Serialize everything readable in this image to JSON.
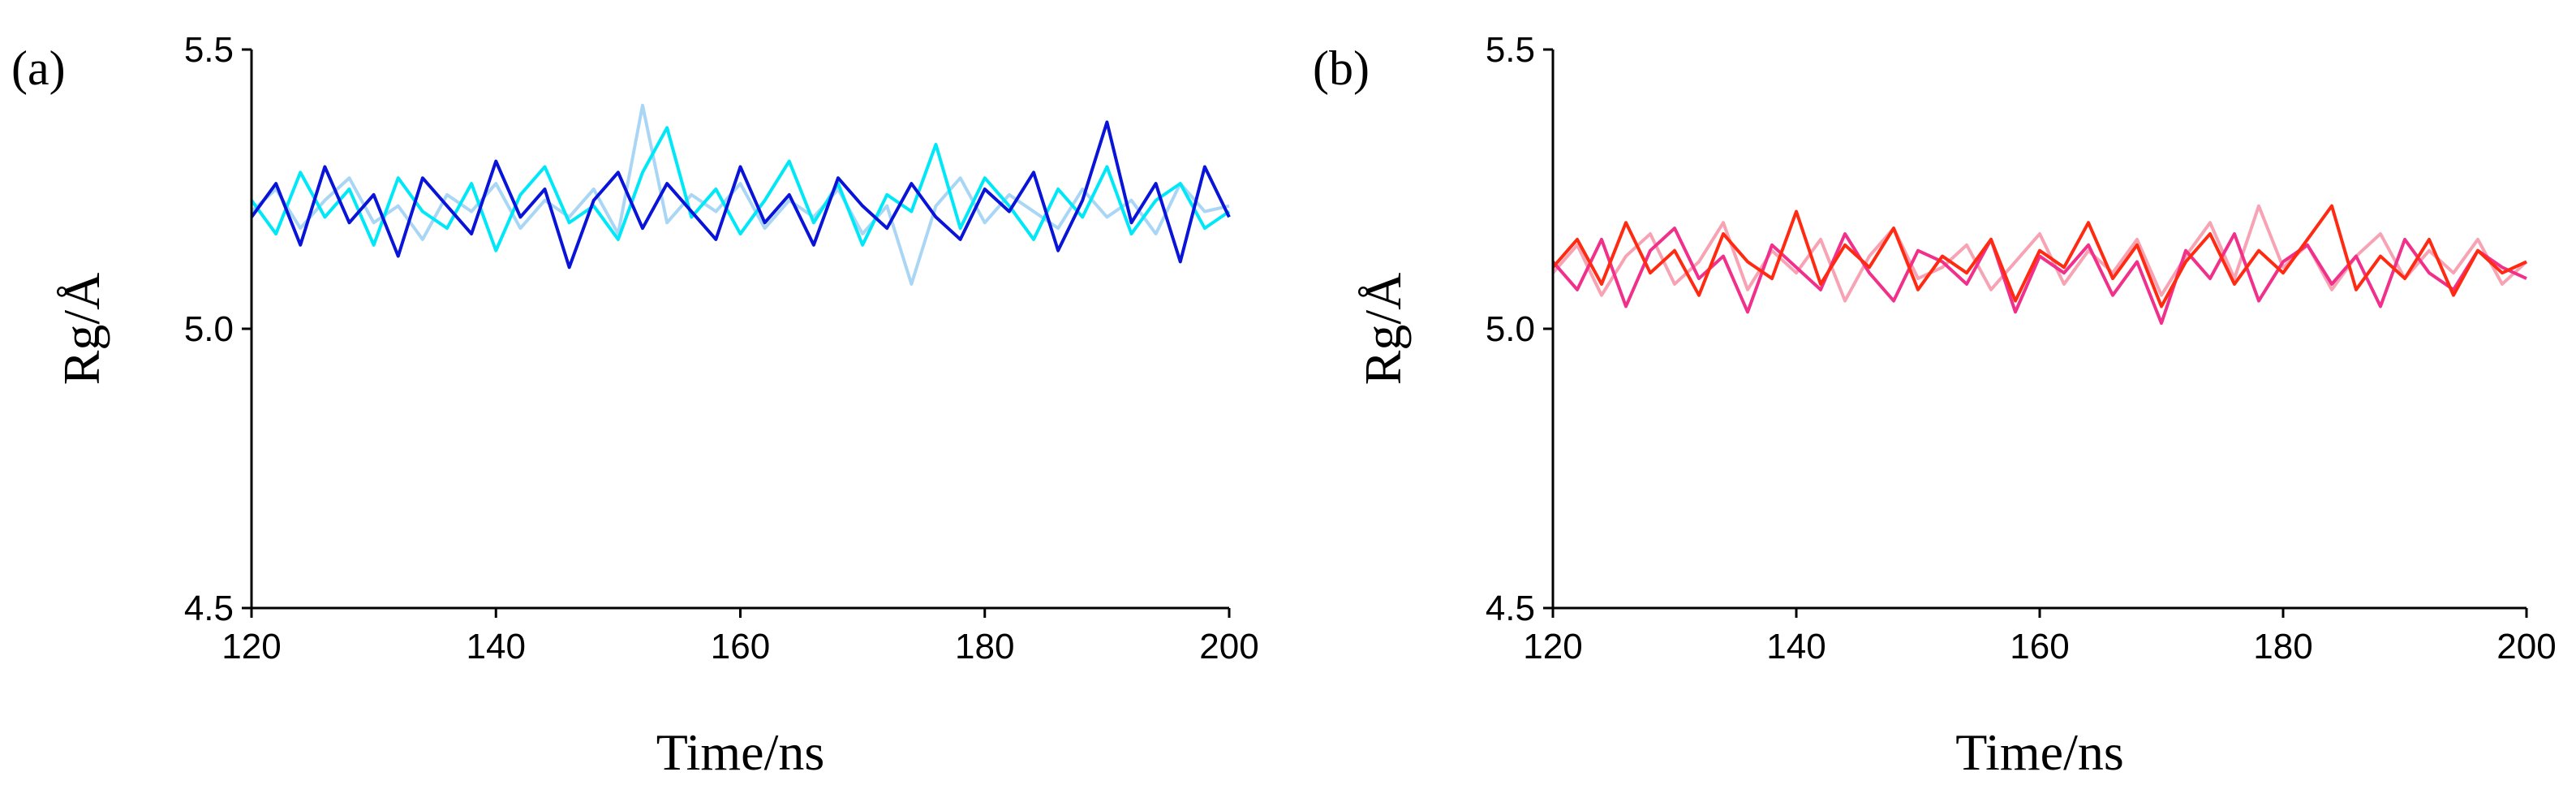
{
  "chart_data": [
    {
      "type": "line",
      "label": "(a)",
      "xlabel": "Time/ns",
      "ylabel": "Rg/Å",
      "x": [
        120,
        122,
        124,
        126,
        128,
        130,
        132,
        134,
        136,
        138,
        140,
        142,
        144,
        146,
        148,
        150,
        152,
        154,
        156,
        158,
        160,
        162,
        164,
        166,
        168,
        170,
        172,
        174,
        176,
        178,
        180,
        182,
        184,
        186,
        188,
        190,
        192,
        194,
        196,
        198,
        200
      ],
      "series": [
        {
          "color": "#a9d6f5",
          "values": [
            5.21,
            5.25,
            5.18,
            5.23,
            5.27,
            5.19,
            5.22,
            5.16,
            5.24,
            5.21,
            5.26,
            5.18,
            5.23,
            5.2,
            5.25,
            5.17,
            5.4,
            5.19,
            5.24,
            5.21,
            5.26,
            5.18,
            5.23,
            5.2,
            5.25,
            5.17,
            5.22,
            5.08,
            5.22,
            5.27,
            5.19,
            5.24,
            5.21,
            5.18,
            5.25,
            5.2,
            5.23,
            5.17,
            5.26,
            5.21,
            5.22
          ]
        },
        {
          "color": "#00e8f8",
          "values": [
            5.23,
            5.17,
            5.28,
            5.2,
            5.25,
            5.15,
            5.27,
            5.21,
            5.18,
            5.26,
            5.14,
            5.24,
            5.29,
            5.19,
            5.22,
            5.16,
            5.28,
            5.36,
            5.2,
            5.25,
            5.17,
            5.23,
            5.3,
            5.19,
            5.26,
            5.15,
            5.24,
            5.21,
            5.33,
            5.18,
            5.27,
            5.22,
            5.16,
            5.25,
            5.2,
            5.29,
            5.17,
            5.23,
            5.26,
            5.18,
            5.21
          ]
        },
        {
          "color": "#0a14d8",
          "values": [
            5.2,
            5.26,
            5.15,
            5.29,
            5.19,
            5.24,
            5.13,
            5.27,
            5.22,
            5.17,
            5.3,
            5.2,
            5.25,
            5.11,
            5.23,
            5.28,
            5.18,
            5.26,
            5.21,
            5.16,
            5.29,
            5.19,
            5.24,
            5.15,
            5.27,
            5.22,
            5.18,
            5.26,
            5.2,
            5.16,
            5.25,
            5.21,
            5.28,
            5.14,
            5.23,
            5.37,
            5.19,
            5.26,
            5.12,
            5.29,
            5.2
          ]
        }
      ],
      "xlim": [
        120,
        200
      ],
      "ylim": [
        4.5,
        5.5
      ],
      "xticks": [
        120,
        140,
        160,
        180,
        200
      ],
      "yticks": [
        4.5,
        {
          "value": 5,
          "label": "5.0"
        },
        5.5
      ]
    },
    {
      "type": "line",
      "label": "(b)",
      "xlabel": "Time/ns",
      "ylabel": "Rg/Å",
      "x": [
        120,
        122,
        124,
        126,
        128,
        130,
        132,
        134,
        136,
        138,
        140,
        142,
        144,
        146,
        148,
        150,
        152,
        154,
        156,
        158,
        160,
        162,
        164,
        166,
        168,
        170,
        172,
        174,
        176,
        178,
        180,
        182,
        184,
        186,
        188,
        190,
        192,
        194,
        196,
        198,
        200
      ],
      "series": [
        {
          "color": "#f7a3b4",
          "values": [
            5.1,
            5.15,
            5.06,
            5.13,
            5.17,
            5.08,
            5.12,
            5.19,
            5.07,
            5.14,
            5.1,
            5.16,
            5.05,
            5.13,
            5.18,
            5.09,
            5.11,
            5.15,
            5.07,
            5.12,
            5.17,
            5.08,
            5.14,
            5.1,
            5.16,
            5.06,
            5.13,
            5.19,
            5.09,
            5.22,
            5.11,
            5.15,
            5.07,
            5.13,
            5.17,
            5.09,
            5.14,
            5.1,
            5.16,
            5.08,
            5.12
          ]
        },
        {
          "color": "#f0308a",
          "values": [
            5.12,
            5.07,
            5.16,
            5.04,
            5.14,
            5.18,
            5.09,
            5.13,
            5.03,
            5.15,
            5.11,
            5.07,
            5.17,
            5.1,
            5.05,
            5.14,
            5.12,
            5.08,
            5.16,
            5.03,
            5.13,
            5.1,
            5.15,
            5.06,
            5.12,
            5.01,
            5.14,
            5.09,
            5.17,
            5.05,
            5.12,
            5.15,
            5.08,
            5.13,
            5.04,
            5.16,
            5.1,
            5.07,
            5.14,
            5.11,
            5.09
          ]
        },
        {
          "color": "#ff2a12",
          "values": [
            5.11,
            5.16,
            5.08,
            5.19,
            5.1,
            5.14,
            5.06,
            5.17,
            5.12,
            5.09,
            5.21,
            5.08,
            5.15,
            5.11,
            5.18,
            5.07,
            5.13,
            5.1,
            5.16,
            5.05,
            5.14,
            5.11,
            5.19,
            5.09,
            5.15,
            5.04,
            5.12,
            5.17,
            5.08,
            5.14,
            5.1,
            5.16,
            5.22,
            5.07,
            5.13,
            5.09,
            5.16,
            5.06,
            5.14,
            5.1,
            5.12
          ]
        }
      ],
      "xlim": [
        120,
        200
      ],
      "ylim": [
        4.5,
        5.5
      ],
      "xticks": [
        120,
        140,
        160,
        180,
        200
      ],
      "yticks": [
        4.5,
        {
          "value": 5,
          "label": "5.0"
        },
        5.5
      ]
    }
  ]
}
